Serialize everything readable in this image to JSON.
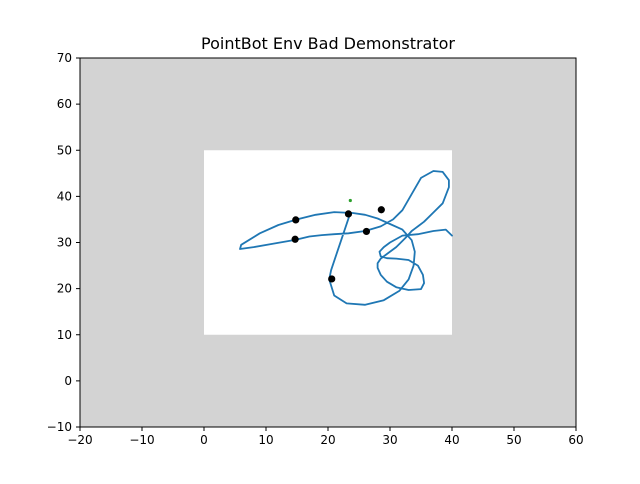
{
  "chart_data": {
    "type": "line",
    "title": "PointBot Env Bad Demonstrator",
    "xlabel": "",
    "ylabel": "",
    "xlim": [
      -20,
      60
    ],
    "ylim": [
      -10,
      70
    ],
    "xticks": [
      -20,
      -10,
      0,
      10,
      20,
      30,
      40,
      50,
      60
    ],
    "yticks": [
      -10,
      0,
      10,
      20,
      30,
      40,
      50,
      60,
      70
    ],
    "xtick_labels": [
      "−20",
      "−10",
      "0",
      "10",
      "20",
      "30",
      "40",
      "50",
      "60"
    ],
    "ytick_labels": [
      "−10",
      "0",
      "10",
      "20",
      "30",
      "40",
      "50",
      "60",
      "70"
    ],
    "grid": false,
    "colors": {
      "background_region": "#d3d3d3",
      "free_region": "#ffffff",
      "trajectory": "#1f77b4",
      "markers": "#000000",
      "goal": "#2ca02c"
    },
    "free_region": {
      "x": [
        0,
        40
      ],
      "y": [
        10,
        50
      ]
    },
    "series": [
      {
        "x": [
          23.5,
          22.5,
          21.5,
          20.5,
          20.2,
          21,
          23,
          26,
          29,
          31.5,
          33,
          33.8,
          34,
          33.5,
          32,
          30,
          28,
          26,
          24,
          21,
          18,
          15,
          12,
          9,
          6,
          5.8,
          8,
          11,
          14.8,
          17,
          19,
          21,
          23.3,
          26,
          28.5,
          30.5,
          32,
          33.5,
          35,
          37,
          38.5,
          39.5,
          39.5,
          38.5,
          37,
          35.5,
          34.5,
          34,
          33.5,
          32.5,
          31,
          29.5,
          28.5,
          28,
          28,
          28.5,
          29.5,
          31,
          33,
          35,
          35.5,
          35.3,
          34.5,
          33,
          31,
          29.5,
          28.5,
          28.3,
          29,
          30,
          32,
          34.5,
          37,
          39,
          40
        ],
        "y": [
          36,
          32,
          28,
          24,
          22,
          18.5,
          16.8,
          16.5,
          17.5,
          19.5,
          22,
          25,
          28,
          30.5,
          32.8,
          34,
          35.2,
          36,
          36.4,
          36.6,
          36,
          35,
          33.8,
          32,
          29.5,
          28.6,
          29,
          29.7,
          30.6,
          31.3,
          31.6,
          31.8,
          32,
          32.5,
          33.5,
          35,
          37,
          40.5,
          44,
          45.5,
          45.3,
          43.5,
          42,
          38.5,
          36.5,
          34.5,
          33.5,
          33,
          32.5,
          31,
          29,
          27.5,
          26.5,
          25.5,
          24.5,
          23,
          21.5,
          20.3,
          19.7,
          19.9,
          21.2,
          23,
          25,
          26.2,
          26.5,
          26.6,
          27,
          28,
          29,
          30,
          31.5,
          31.8,
          32.5,
          32.8,
          31.5
        ]
      }
    ],
    "points": {
      "x": [
        14.8,
        14.7,
        23.3,
        28.6,
        26.2,
        20.6
      ],
      "y": [
        34.9,
        30.7,
        36.2,
        37.1,
        32.4,
        22.1
      ]
    },
    "goal": {
      "x": 23.6,
      "y": 39.1
    }
  }
}
